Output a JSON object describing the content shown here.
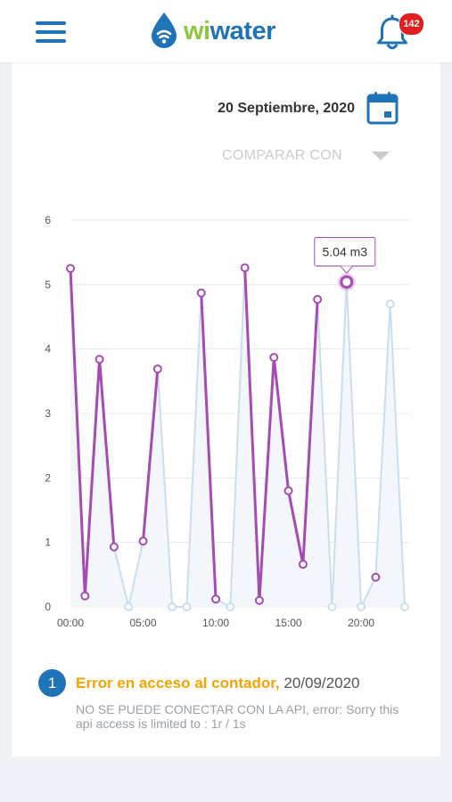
{
  "header": {
    "logo_wi": "wi",
    "logo_water": "water",
    "notification_count": "142",
    "icons": {
      "menu": "hamburger-menu-icon",
      "logo": "water-drop-wifi-icon",
      "bell": "bell-icon"
    }
  },
  "date_selector": {
    "label": "20 Septiembre, 2020",
    "icon": "calendar-icon"
  },
  "compare": {
    "label": "COMPARAR CON",
    "icon": "chevron-down-icon"
  },
  "colors": {
    "brand_blue": "#1f73b7",
    "brand_green": "#8dc63f",
    "series_primary": "#a64bb5",
    "series_compare": "#c9deee",
    "warning": "#f5a300",
    "badge": "#e02020"
  },
  "chart_data": {
    "type": "line",
    "x": [
      "00:00",
      "01:00",
      "02:00",
      "03:00",
      "04:00",
      "05:00",
      "06:00",
      "07:00",
      "08:00",
      "09:00",
      "10:00",
      "11:00",
      "12:00",
      "13:00",
      "14:00",
      "15:00",
      "16:00",
      "17:00",
      "18:00",
      "19:00",
      "20:00",
      "21:00",
      "22:00",
      "23:00"
    ],
    "x_tick_labels": [
      "00:00",
      "05:00",
      "10:00",
      "15:00",
      "20:00"
    ],
    "y_ticks": [
      "0",
      "1",
      "2",
      "3",
      "4",
      "5",
      "6"
    ],
    "ylim": [
      0,
      6
    ],
    "grid": "horizontal",
    "series": [
      {
        "values": [
          5.25,
          0.17,
          3.84,
          0.93,
          null,
          1.02,
          3.69,
          null,
          null,
          4.87,
          0.12,
          null,
          5.26,
          0.1,
          3.87,
          1.8,
          0.66,
          4.77,
          null,
          null,
          null,
          0.46,
          null,
          null
        ]
      },
      {
        "values": [
          null,
          null,
          null,
          null,
          0,
          null,
          null,
          0,
          0,
          null,
          null,
          0,
          null,
          null,
          null,
          null,
          null,
          null,
          0,
          5.04,
          0,
          null,
          4.7,
          0
        ]
      }
    ],
    "tooltip": {
      "label": "5.04 m3"
    }
  },
  "alert": {
    "number": "1",
    "title": "Error en acceso al contador,",
    "date": "20/09/2020",
    "message": "NO SE PUEDE CONECTAR CON LA API, error: Sorry this api access is limited to : 1r / 1s"
  }
}
